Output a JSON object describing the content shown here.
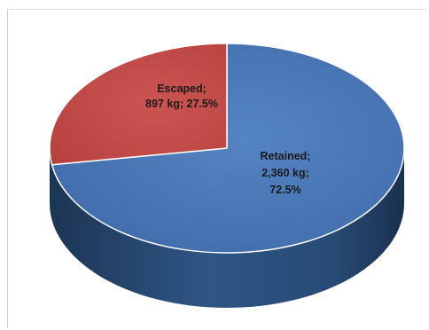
{
  "chart_data": {
    "type": "pie",
    "title": "",
    "slices": [
      {
        "name": "Retained",
        "value": 2360,
        "percent": 72.5,
        "unit": "kg",
        "color": "#4a76b8"
      },
      {
        "name": "Escaped",
        "value": 897,
        "percent": 27.5,
        "unit": "kg",
        "color": "#c24b48"
      }
    ],
    "labels": {
      "escaped": [
        "Escaped;",
        "897 kg; 27.5%"
      ],
      "retained": [
        "Retained;",
        "2,360 kg;",
        "72.5%"
      ]
    },
    "legend": "none",
    "style": "3d"
  }
}
